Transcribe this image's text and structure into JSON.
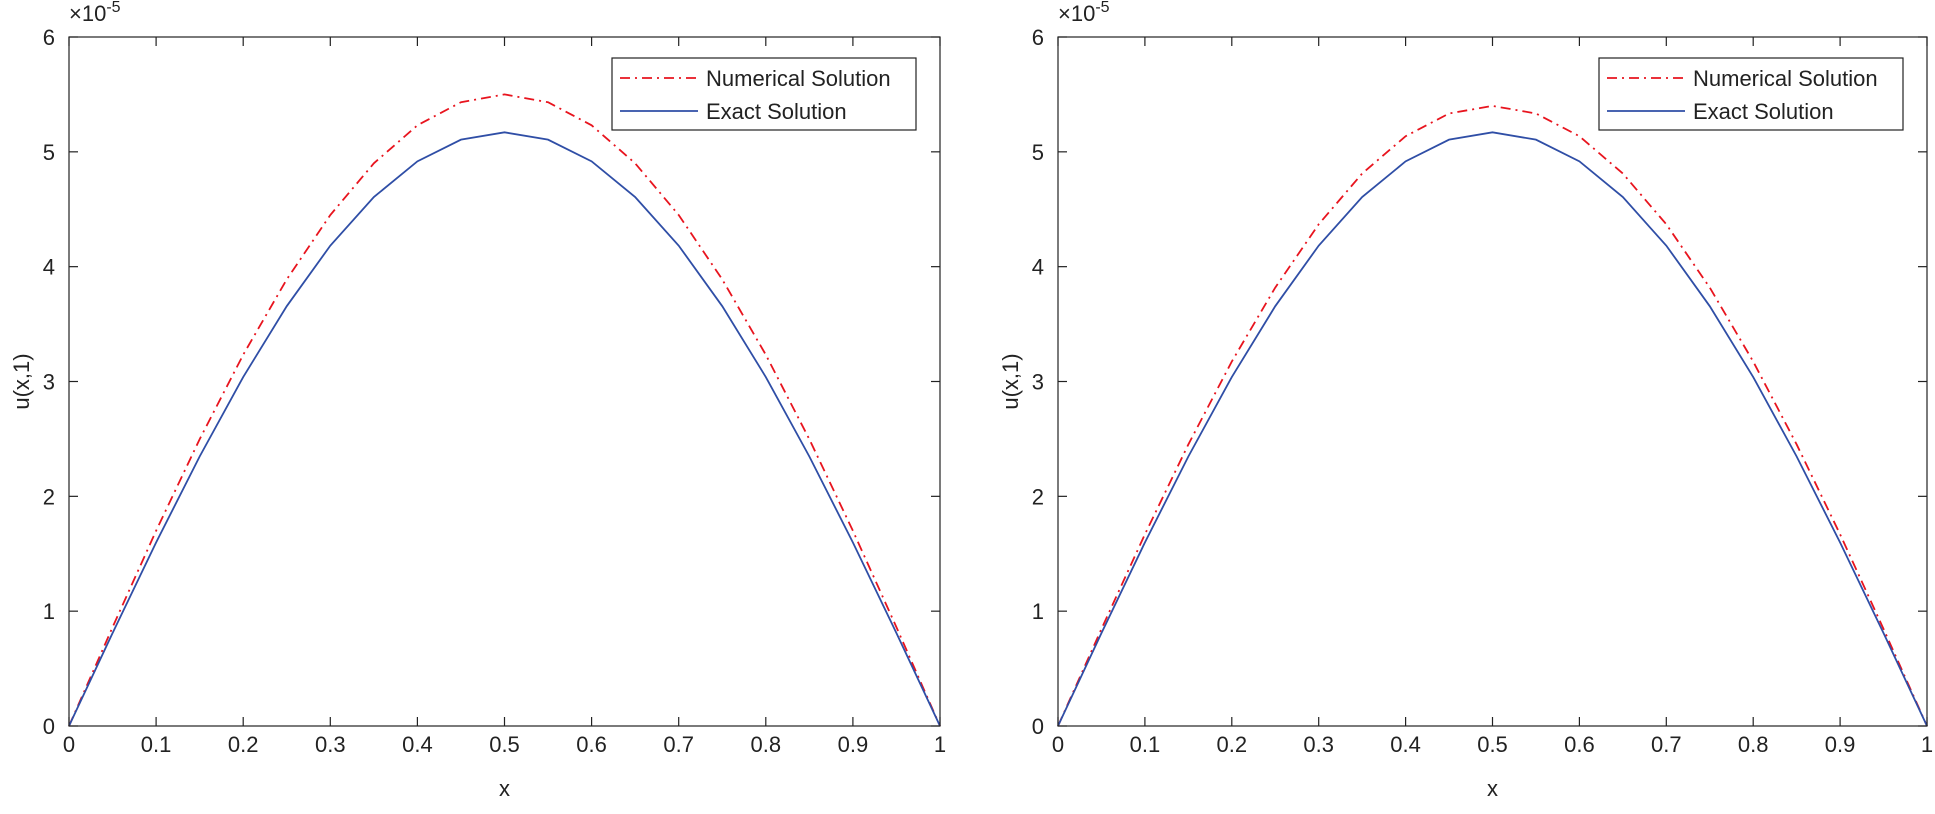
{
  "chart_data": [
    {
      "type": "line",
      "xlabel": "x",
      "ylabel": "u(x,1)",
      "multiplier": {
        "base": "×10",
        "exponent": "-5"
      },
      "x": [
        0,
        0.05,
        0.1,
        0.15,
        0.2,
        0.25,
        0.3,
        0.35,
        0.4,
        0.45,
        0.5,
        0.55,
        0.6,
        0.65,
        0.7,
        0.75,
        0.8,
        0.85,
        0.9,
        0.95,
        1
      ],
      "series": [
        {
          "name": "Numerical Solution",
          "color": "#e8141e",
          "dash": "dashdot",
          "values": [
            0,
            0.86,
            1.7,
            2.497,
            3.233,
            3.889,
            4.45,
            4.9,
            5.231,
            5.432,
            5.5,
            5.432,
            5.231,
            4.9,
            4.45,
            3.889,
            3.233,
            2.497,
            1.7,
            0.86,
            0
          ]
        },
        {
          "name": "Exact Solution",
          "color": "#2f4ea6",
          "dash": "solid",
          "values": [
            0,
            0.809,
            1.598,
            2.347,
            3.039,
            3.656,
            4.183,
            4.606,
            4.917,
            5.106,
            5.17,
            5.106,
            4.917,
            4.606,
            4.183,
            3.656,
            3.039,
            2.347,
            1.598,
            0.809,
            0
          ]
        }
      ],
      "xlim": [
        0,
        1
      ],
      "xticks": [
        0,
        0.1,
        0.2,
        0.3,
        0.4,
        0.5,
        0.6,
        0.7,
        0.8,
        0.9,
        1
      ],
      "ylim": [
        0,
        6
      ],
      "yticks": [
        0,
        1,
        2,
        3,
        4,
        5,
        6
      ],
      "legend": "upper right"
    },
    {
      "type": "line",
      "xlabel": "x",
      "ylabel": "u(x,1)",
      "multiplier": {
        "base": "×10",
        "exponent": "-5"
      },
      "x": [
        0,
        0.05,
        0.1,
        0.15,
        0.2,
        0.25,
        0.3,
        0.35,
        0.4,
        0.45,
        0.5,
        0.55,
        0.6,
        0.65,
        0.7,
        0.75,
        0.8,
        0.85,
        0.9,
        0.95,
        1
      ],
      "series": [
        {
          "name": "Numerical Solution",
          "color": "#e8141e",
          "dash": "dashdot",
          "values": [
            0,
            0.845,
            1.669,
            2.452,
            3.174,
            3.818,
            4.369,
            4.811,
            5.136,
            5.334,
            5.4,
            5.334,
            5.136,
            4.811,
            4.369,
            3.818,
            3.174,
            2.452,
            1.669,
            0.845,
            0
          ]
        },
        {
          "name": "Exact Solution",
          "color": "#2f4ea6",
          "dash": "solid",
          "values": [
            0,
            0.809,
            1.598,
            2.347,
            3.039,
            3.656,
            4.183,
            4.606,
            4.917,
            5.106,
            5.17,
            5.106,
            4.917,
            4.606,
            4.183,
            3.656,
            3.039,
            2.347,
            1.598,
            0.809,
            0
          ]
        }
      ],
      "xlim": [
        0,
        1
      ],
      "xticks": [
        0,
        0.1,
        0.2,
        0.3,
        0.4,
        0.5,
        0.6,
        0.7,
        0.8,
        0.9,
        1
      ],
      "ylim": [
        0,
        6
      ],
      "yticks": [
        0,
        1,
        2,
        3,
        4,
        5,
        6
      ],
      "legend": "upper right"
    }
  ]
}
